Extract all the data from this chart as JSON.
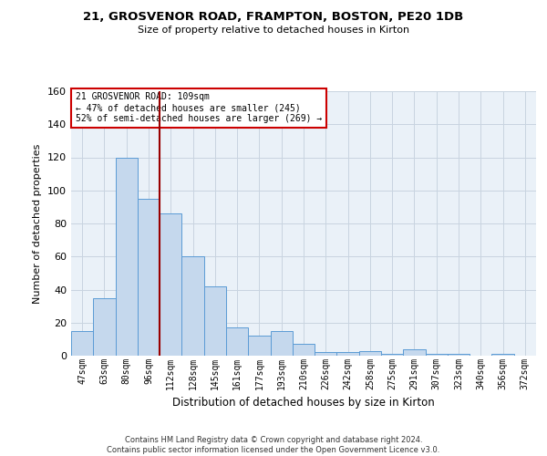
{
  "title_line1": "21, GROSVENOR ROAD, FRAMPTON, BOSTON, PE20 1DB",
  "title_line2": "Size of property relative to detached houses in Kirton",
  "xlabel": "Distribution of detached houses by size in Kirton",
  "ylabel": "Number of detached properties",
  "categories": [
    "47sqm",
    "63sqm",
    "80sqm",
    "96sqm",
    "112sqm",
    "128sqm",
    "145sqm",
    "161sqm",
    "177sqm",
    "193sqm",
    "210sqm",
    "226sqm",
    "242sqm",
    "258sqm",
    "275sqm",
    "291sqm",
    "307sqm",
    "323sqm",
    "340sqm",
    "356sqm",
    "372sqm"
  ],
  "values": [
    15,
    35,
    120,
    95,
    86,
    60,
    42,
    17,
    12,
    15,
    7,
    2,
    2,
    3,
    1,
    4,
    1,
    1,
    0,
    1,
    0
  ],
  "bar_color": "#c5d8ed",
  "bar_edge_color": "#5b9bd5",
  "grid_color": "#c8d4e0",
  "background_color": "#eaf1f8",
  "vline_x_index": 4,
  "vline_color": "#990000",
  "annotation_text": "21 GROSVENOR ROAD: 109sqm\n← 47% of detached houses are smaller (245)\n52% of semi-detached houses are larger (269) →",
  "annotation_box_color": "white",
  "annotation_box_edge": "#cc0000",
  "ylim": [
    0,
    160
  ],
  "yticks": [
    0,
    20,
    40,
    60,
    80,
    100,
    120,
    140,
    160
  ],
  "footnote": "Contains HM Land Registry data © Crown copyright and database right 2024.\nContains public sector information licensed under the Open Government Licence v3.0."
}
